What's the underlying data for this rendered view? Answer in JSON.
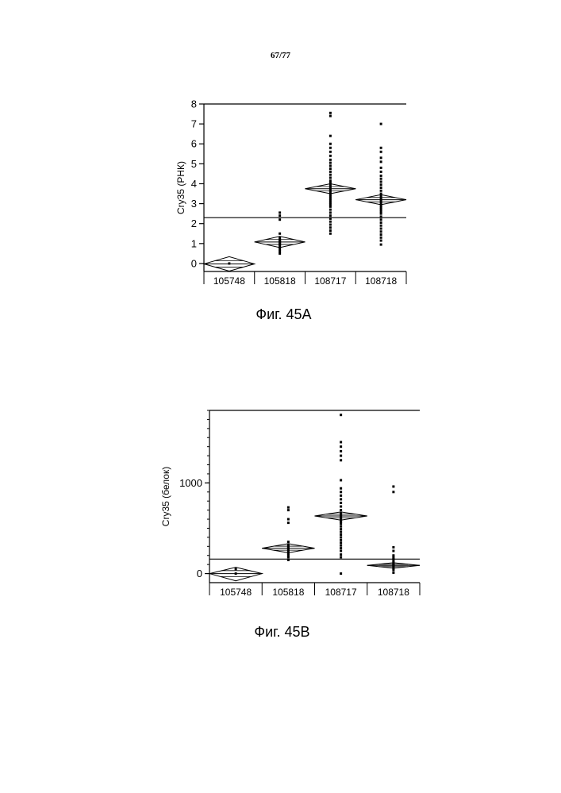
{
  "page": {
    "number": "67/77"
  },
  "chart_data": [
    {
      "type": "scatter",
      "caption": "Фиг. 45A",
      "ylabel": "Cry35 (РНК)",
      "ylim": [
        -0.4,
        8
      ],
      "yticks": [
        0,
        1,
        2,
        3,
        4,
        5,
        6,
        7,
        8
      ],
      "categories": [
        "105748",
        "105818",
        "108717",
        "108718"
      ],
      "reference_line": 2.3,
      "groups": [
        {
          "mean": -0.02,
          "ci": [
            -0.38,
            0.34
          ],
          "points": [
            0.0
          ]
        },
        {
          "mean": 1.08,
          "ci": [
            0.8,
            1.36
          ],
          "points": [
            2.55,
            2.4,
            2.2,
            1.5,
            1.3,
            1.2,
            1.15,
            1.1,
            1.05,
            1.0,
            0.95,
            0.9,
            0.8,
            0.7,
            0.6,
            0.5
          ]
        },
        {
          "mean": 3.75,
          "ci": [
            3.5,
            4.0
          ],
          "points": [
            7.55,
            7.4,
            6.4,
            6.0,
            5.8,
            5.6,
            5.4,
            5.2,
            5.05,
            4.9,
            4.75,
            4.6,
            4.45,
            4.3,
            4.15,
            4.05,
            3.95,
            3.85,
            3.75,
            3.65,
            3.55,
            3.45,
            3.35,
            3.25,
            3.15,
            3.05,
            2.95,
            2.85,
            2.7,
            2.55,
            2.4,
            2.25,
            2.1,
            1.95,
            1.8,
            1.65,
            1.5
          ]
        },
        {
          "mean": 3.2,
          "ci": [
            2.95,
            3.45
          ],
          "points": [
            7.0,
            5.8,
            5.6,
            5.3,
            5.1,
            4.8,
            4.6,
            4.4,
            4.25,
            4.1,
            3.95,
            3.8,
            3.65,
            3.5,
            3.4,
            3.3,
            3.2,
            3.1,
            3.0,
            2.9,
            2.8,
            2.7,
            2.6,
            2.5,
            2.35,
            2.2,
            2.05,
            1.9,
            1.75,
            1.6,
            1.45,
            1.3,
            1.15,
            0.95
          ]
        }
      ]
    },
    {
      "type": "scatter",
      "caption": "Фиг. 45B",
      "ylabel": "Cry35 (белок)",
      "ylim": [
        -100,
        1800
      ],
      "yticks": [
        0,
        1000
      ],
      "categories": [
        "105748",
        "105818",
        "108717",
        "108718"
      ],
      "reference_line": 160,
      "groups": [
        {
          "mean": 0,
          "ci": [
            -80,
            70
          ],
          "points": [
            0,
            50
          ]
        },
        {
          "mean": 280,
          "ci": [
            230,
            330
          ],
          "points": [
            730,
            700,
            600,
            560,
            350,
            320,
            300,
            280,
            260,
            240,
            220,
            200,
            180,
            150
          ]
        },
        {
          "mean": 635,
          "ci": [
            590,
            680
          ],
          "points": [
            1750,
            1450,
            1400,
            1350,
            1300,
            1250,
            1030,
            940,
            900,
            860,
            820,
            780,
            740,
            700,
            670,
            650,
            630,
            610,
            590,
            570,
            550,
            520,
            490,
            460,
            430,
            400,
            370,
            340,
            310,
            280,
            250,
            210,
            180,
            0
          ]
        },
        {
          "mean": 90,
          "ci": [
            60,
            120
          ],
          "points": [
            960,
            900,
            290,
            250,
            200,
            180,
            160,
            140,
            120,
            110,
            100,
            90,
            80,
            60,
            40,
            10
          ]
        }
      ]
    }
  ]
}
